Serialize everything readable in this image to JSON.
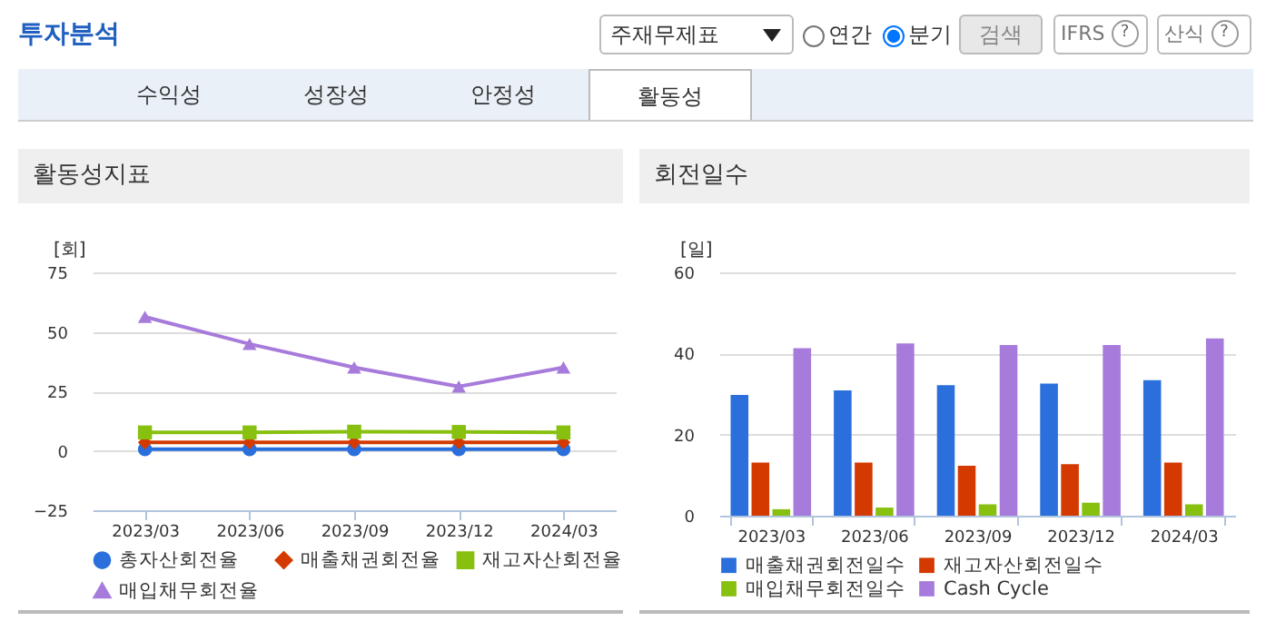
{
  "chart_data": [
    {
      "type": "other",
      "title": "투자분석",
      "annotations": [
        "주재무제표",
        "연간",
        "분기",
        "검색",
        "IFRS",
        "산식",
        "수익성",
        "성장성",
        "안정성",
        "활동성",
        "?",
        "?"
      ]
    },
    {
      "type": "line",
      "title": "활동성지표",
      "ylabel": "[회]",
      "categories": [
        "2023/03",
        "2023/06",
        "2023/09",
        "2023/12",
        "2024/03"
      ],
      "ylim": [
        -25,
        75
      ],
      "yticks": [
        -25,
        0,
        25,
        50,
        75
      ],
      "grid": "y",
      "legend": "bottom",
      "line_style": "solid",
      "series": [
        {
          "name": "총자산회전율",
          "color": "#2a6fdb",
          "marker": "circle",
          "values": [
            0.7,
            0.7,
            0.7,
            0.7,
            0.7
          ]
        },
        {
          "name": "매출채권회전율",
          "color": "#d43a00",
          "marker": "diamond",
          "values": [
            3.5,
            3.5,
            3.5,
            3.5,
            3.5
          ]
        },
        {
          "name": "재고자산회전율",
          "color": "#88c010",
          "marker": "square",
          "values": [
            7.7,
            7.7,
            8.0,
            7.9,
            7.7
          ]
        },
        {
          "name": "매입채무회전율",
          "color": "#a77bdb",
          "marker": "triangle",
          "values": [
            56.3,
            44.9,
            35.0,
            27.0,
            35.0
          ]
        }
      ]
    },
    {
      "type": "bar",
      "title": "회전일수",
      "ylabel": "[일]",
      "categories": [
        "2023/03",
        "2023/06",
        "2023/09",
        "2023/12",
        "2024/03"
      ],
      "ylim": [
        0,
        60
      ],
      "yticks": [
        0,
        20,
        40,
        60
      ],
      "grid": "y",
      "legend": "bottom",
      "series": [
        {
          "name": "매출채권회전일수",
          "color": "#2a6fdb",
          "values": [
            29.8,
            30.9,
            32.2,
            32.6,
            33.4
          ]
        },
        {
          "name": "재고자산회전일수",
          "color": "#d43a00",
          "values": [
            13.1,
            13.1,
            12.3,
            12.7,
            13.1
          ]
        },
        {
          "name": "매입채무회전일수",
          "color": "#88c010",
          "values": [
            1.6,
            2.0,
            2.8,
            3.2,
            2.8
          ]
        },
        {
          "name": "Cash Cycle",
          "color": "#a77bdb",
          "values": [
            41.3,
            42.5,
            42.1,
            42.1,
            43.7
          ]
        }
      ]
    }
  ]
}
